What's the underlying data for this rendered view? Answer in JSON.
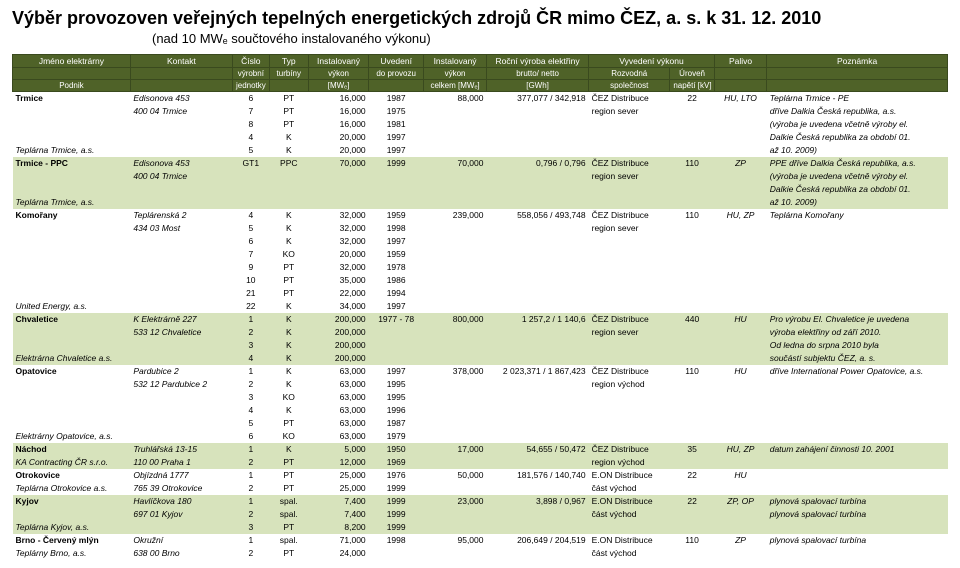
{
  "title": "Výběr provozoven veřejných tepelných energetických zdrojů ČR mimo ČEZ, a. s. k 31. 12. 2010",
  "subtitle": "(nad 10 MWₑ součtového instalovaného výkonu)",
  "headers": {
    "r1": [
      "Jméno elektrárny",
      "Kontakt",
      "Číslo",
      "Typ",
      "Instalovaný",
      "Uvedení",
      "Instalovaný",
      "Roční výroba elektřiny",
      "Vyvedení výkonu",
      "Palivo",
      "Poznámka"
    ],
    "r2": [
      "",
      "",
      "výrobní",
      "turbíny",
      "výkon",
      "do provozu",
      "výkon",
      "brutto/ netto",
      "Rozvodná",
      "Úroveň",
      "",
      ""
    ],
    "r3": [
      "Podnik",
      "",
      "jednotky",
      "",
      "[MWₑ]",
      "",
      "celkem [MWₑ]",
      "[GWh]",
      "společnost",
      "napětí [kV]",
      "",
      ""
    ]
  },
  "rows": [
    {
      "shade": false,
      "plant": "Trmice",
      "company": "",
      "kontakt": "Edisonova 453",
      "cislo": "6",
      "typ": "PT",
      "inst": "16,000",
      "uved": "1987",
      "instc": "88,000",
      "rocni": "377,077 / 342,918",
      "vyv1": "ČEZ Distribuce",
      "vyv2": "22",
      "palivo": "HU, LTO",
      "pozn": "Teplárna Trmice - PE"
    },
    {
      "shade": false,
      "plant": "",
      "company": "",
      "kontakt": "400 04 Trmice",
      "cislo": "7",
      "typ": "PT",
      "inst": "16,000",
      "uved": "1975",
      "instc": "",
      "rocni": "",
      "vyv1": "region sever",
      "vyv2": "",
      "palivo": "",
      "pozn": "dříve Dalkia Česká republika, a.s."
    },
    {
      "shade": false,
      "plant": "",
      "company": "",
      "kontakt": "",
      "cislo": "8",
      "typ": "PT",
      "inst": "16,000",
      "uved": "1981",
      "instc": "",
      "rocni": "",
      "vyv1": "",
      "vyv2": "",
      "palivo": "",
      "pozn": "(výroba je uvedena včetně výroby el."
    },
    {
      "shade": false,
      "plant": "",
      "company": "",
      "kontakt": "",
      "cislo": "4",
      "typ": "K",
      "inst": "20,000",
      "uved": "1997",
      "instc": "",
      "rocni": "",
      "vyv1": "",
      "vyv2": "",
      "palivo": "",
      "pozn": "Dalkie Česká republika za období 01."
    },
    {
      "shade": false,
      "plant": "",
      "company": "Teplárna Trmice, a.s.",
      "kontakt": "",
      "cislo": "5",
      "typ": "K",
      "inst": "20,000",
      "uved": "1997",
      "instc": "",
      "rocni": "",
      "vyv1": "",
      "vyv2": "",
      "palivo": "",
      "pozn": "až 10. 2009)"
    },
    {
      "shade": true,
      "plant": "Trmice - PPC",
      "company": "",
      "kontakt": "Edisonova 453",
      "cislo": "GT1",
      "typ": "PPC",
      "inst": "70,000",
      "uved": "1999",
      "instc": "70,000",
      "rocni": "0,796 / 0,796",
      "vyv1": "ČEZ Distribuce",
      "vyv2": "110",
      "palivo": "ZP",
      "pozn": "PPE dříve Dalkia Česká republika, a.s."
    },
    {
      "shade": true,
      "plant": "",
      "company": "",
      "kontakt": "400 04 Trmice",
      "cislo": "",
      "typ": "",
      "inst": "",
      "uved": "",
      "instc": "",
      "rocni": "",
      "vyv1": "region sever",
      "vyv2": "",
      "palivo": "",
      "pozn": "(výroba je uvedena včetně výroby el."
    },
    {
      "shade": true,
      "plant": "",
      "company": "",
      "kontakt": "",
      "cislo": "",
      "typ": "",
      "inst": "",
      "uved": "",
      "instc": "",
      "rocni": "",
      "vyv1": "",
      "vyv2": "",
      "palivo": "",
      "pozn": "Dalkie Česká republika za období 01."
    },
    {
      "shade": true,
      "plant": "",
      "company": "Teplárna Trmice, a.s.",
      "kontakt": "",
      "cislo": "",
      "typ": "",
      "inst": "",
      "uved": "",
      "instc": "",
      "rocni": "",
      "vyv1": "",
      "vyv2": "",
      "palivo": "",
      "pozn": "až 10. 2009)"
    },
    {
      "shade": false,
      "plant": "Komořany",
      "company": "",
      "kontakt": "Teplárenská 2",
      "cislo": "4",
      "typ": "K",
      "inst": "32,000",
      "uved": "1959",
      "instc": "239,000",
      "rocni": "558,056 / 493,748",
      "vyv1": "ČEZ Distribuce",
      "vyv2": "110",
      "palivo": "HU, ZP",
      "pozn": "Teplárna Komořany"
    },
    {
      "shade": false,
      "plant": "",
      "company": "",
      "kontakt": "434 03 Most",
      "cislo": "5",
      "typ": "K",
      "inst": "32,000",
      "uved": "1998",
      "instc": "",
      "rocni": "",
      "vyv1": "region sever",
      "vyv2": "",
      "palivo": "",
      "pozn": ""
    },
    {
      "shade": false,
      "plant": "",
      "company": "",
      "kontakt": "",
      "cislo": "6",
      "typ": "K",
      "inst": "32,000",
      "uved": "1997",
      "instc": "",
      "rocni": "",
      "vyv1": "",
      "vyv2": "",
      "palivo": "",
      "pozn": ""
    },
    {
      "shade": false,
      "plant": "",
      "company": "",
      "kontakt": "",
      "cislo": "7",
      "typ": "KO",
      "inst": "20,000",
      "uved": "1959",
      "instc": "",
      "rocni": "",
      "vyv1": "",
      "vyv2": "",
      "palivo": "",
      "pozn": ""
    },
    {
      "shade": false,
      "plant": "",
      "company": "",
      "kontakt": "",
      "cislo": "9",
      "typ": "PT",
      "inst": "32,000",
      "uved": "1978",
      "instc": "",
      "rocni": "",
      "vyv1": "",
      "vyv2": "",
      "palivo": "",
      "pozn": ""
    },
    {
      "shade": false,
      "plant": "",
      "company": "",
      "kontakt": "",
      "cislo": "10",
      "typ": "PT",
      "inst": "35,000",
      "uved": "1986",
      "instc": "",
      "rocni": "",
      "vyv1": "",
      "vyv2": "",
      "palivo": "",
      "pozn": ""
    },
    {
      "shade": false,
      "plant": "",
      "company": "",
      "kontakt": "",
      "cislo": "21",
      "typ": "PT",
      "inst": "22,000",
      "uved": "1994",
      "instc": "",
      "rocni": "",
      "vyv1": "",
      "vyv2": "",
      "palivo": "",
      "pozn": ""
    },
    {
      "shade": false,
      "plant": "",
      "company": "United Energy, a.s.",
      "kontakt": "",
      "cislo": "22",
      "typ": "K",
      "inst": "34,000",
      "uved": "1997",
      "instc": "",
      "rocni": "",
      "vyv1": "",
      "vyv2": "",
      "palivo": "",
      "pozn": ""
    },
    {
      "shade": true,
      "plant": "Chvaletice",
      "company": "",
      "kontakt": "K Elektrárně 227",
      "cislo": "1",
      "typ": "K",
      "inst": "200,000",
      "uved": "1977 - 78",
      "instc": "800,000",
      "rocni": "1 257,2 / 1 140,6",
      "vyv1": "ČEZ Distribuce",
      "vyv2": "440",
      "palivo": "HU",
      "pozn": "Pro výrobu El. Chvaletice je uvedena"
    },
    {
      "shade": true,
      "plant": "",
      "company": "",
      "kontakt": "533 12 Chvaletice",
      "cislo": "2",
      "typ": "K",
      "inst": "200,000",
      "uved": "",
      "instc": "",
      "rocni": "",
      "vyv1": "region sever",
      "vyv2": "",
      "palivo": "",
      "pozn": "výroba elektřiny od září 2010."
    },
    {
      "shade": true,
      "plant": "",
      "company": "",
      "kontakt": "",
      "cislo": "3",
      "typ": "K",
      "inst": "200,000",
      "uved": "",
      "instc": "",
      "rocni": "",
      "vyv1": "",
      "vyv2": "",
      "palivo": "",
      "pozn": "Od ledna do srpna 2010 byla"
    },
    {
      "shade": true,
      "plant": "",
      "company": "Elektrárna Chvaletice a.s.",
      "kontakt": "",
      "cislo": "4",
      "typ": "K",
      "inst": "200,000",
      "uved": "",
      "instc": "",
      "rocni": "",
      "vyv1": "",
      "vyv2": "",
      "palivo": "",
      "pozn": "součástí subjektu ČEZ, a. s."
    },
    {
      "shade": false,
      "plant": "Opatovice",
      "company": "",
      "kontakt": "Pardubice 2",
      "cislo": "1",
      "typ": "K",
      "inst": "63,000",
      "uved": "1997",
      "instc": "378,000",
      "rocni": "2 023,371 / 1 867,423",
      "vyv1": "ČEZ Distribuce",
      "vyv2": "110",
      "palivo": "HU",
      "pozn": "dříve International Power Opatovice, a.s."
    },
    {
      "shade": false,
      "plant": "",
      "company": "",
      "kontakt": "532 12 Pardubice 2",
      "cislo": "2",
      "typ": "K",
      "inst": "63,000",
      "uved": "1995",
      "instc": "",
      "rocni": "",
      "vyv1": "region východ",
      "vyv2": "",
      "palivo": "",
      "pozn": ""
    },
    {
      "shade": false,
      "plant": "",
      "company": "",
      "kontakt": "",
      "cislo": "3",
      "typ": "KO",
      "inst": "63,000",
      "uved": "1995",
      "instc": "",
      "rocni": "",
      "vyv1": "",
      "vyv2": "",
      "palivo": "",
      "pozn": ""
    },
    {
      "shade": false,
      "plant": "",
      "company": "",
      "kontakt": "",
      "cislo": "4",
      "typ": "K",
      "inst": "63,000",
      "uved": "1996",
      "instc": "",
      "rocni": "",
      "vyv1": "",
      "vyv2": "",
      "palivo": "",
      "pozn": ""
    },
    {
      "shade": false,
      "plant": "",
      "company": "",
      "kontakt": "",
      "cislo": "5",
      "typ": "PT",
      "inst": "63,000",
      "uved": "1987",
      "instc": "",
      "rocni": "",
      "vyv1": "",
      "vyv2": "",
      "palivo": "",
      "pozn": ""
    },
    {
      "shade": false,
      "plant": "",
      "company": "Elektrárny Opatovice, a.s.",
      "kontakt": "",
      "cislo": "6",
      "typ": "KO",
      "inst": "63,000",
      "uved": "1979",
      "instc": "",
      "rocni": "",
      "vyv1": "",
      "vyv2": "",
      "palivo": "",
      "pozn": ""
    },
    {
      "shade": true,
      "plant": "Náchod",
      "company": "",
      "kontakt": "Truhlářská 13-15",
      "cislo": "1",
      "typ": "K",
      "inst": "5,000",
      "uved": "1950",
      "instc": "17,000",
      "rocni": "54,655 / 50,472",
      "vyv1": "ČEZ Distribuce",
      "vyv2": "35",
      "palivo": "HU, ZP",
      "pozn": "datum zahájení činnosti 10. 2001"
    },
    {
      "shade": true,
      "plant": "",
      "company": "KA Contracting ČR s.r.o.",
      "kontakt": "110 00  Praha 1",
      "cislo": "2",
      "typ": "PT",
      "inst": "12,000",
      "uved": "1969",
      "instc": "",
      "rocni": "",
      "vyv1": "region východ",
      "vyv2": "",
      "palivo": "",
      "pozn": ""
    },
    {
      "shade": false,
      "plant": "Otrokovice",
      "company": "",
      "kontakt": "Objízdná 1777",
      "cislo": "1",
      "typ": "PT",
      "inst": "25,000",
      "uved": "1976",
      "instc": "50,000",
      "rocni": "181,576 / 140,740",
      "vyv1": "E.ON Distribuce",
      "vyv2": "22",
      "palivo": "HU",
      "pozn": ""
    },
    {
      "shade": false,
      "plant": "",
      "company": "Teplárna Otrokovice a.s.",
      "kontakt": "765 39 Otrokovice",
      "cislo": "2",
      "typ": "PT",
      "inst": "25,000",
      "uved": "1999",
      "instc": "",
      "rocni": "",
      "vyv1": "část východ",
      "vyv2": "",
      "palivo": "",
      "pozn": ""
    },
    {
      "shade": true,
      "plant": "Kyjov",
      "company": "",
      "kontakt": "Havlíčkova 180",
      "cislo": "1",
      "typ": "spal.",
      "inst": "7,400",
      "uved": "1999",
      "instc": "23,000",
      "rocni": "3,898 / 0,967",
      "vyv1": "E.ON Distribuce",
      "vyv2": "22",
      "palivo": "ZP, OP",
      "pozn": "plynová spalovací turbína"
    },
    {
      "shade": true,
      "plant": "",
      "company": "",
      "kontakt": "697 01 Kyjov",
      "cislo": "2",
      "typ": "spal.",
      "inst": "7,400",
      "uved": "1999",
      "instc": "",
      "rocni": "",
      "vyv1": "část východ",
      "vyv2": "",
      "palivo": "",
      "pozn": "plynová spalovací turbína"
    },
    {
      "shade": true,
      "plant": "",
      "company": "Teplárna Kyjov, a.s.",
      "kontakt": "",
      "cislo": "3",
      "typ": "PT",
      "inst": "8,200",
      "uved": "1999",
      "instc": "",
      "rocni": "",
      "vyv1": "",
      "vyv2": "",
      "palivo": "",
      "pozn": ""
    },
    {
      "shade": false,
      "plant": "Brno - Červený mlýn",
      "company": "",
      "kontakt": "Okružní",
      "cislo": "1",
      "typ": "spal.",
      "inst": "71,000",
      "uved": "1998",
      "instc": "95,000",
      "rocni": "206,649 / 204,519",
      "vyv1": "E.ON Distribuce",
      "vyv2": "110",
      "palivo": "ZP",
      "pozn": "plynová spalovací turbína"
    },
    {
      "shade": false,
      "plant": "",
      "company": "Teplárny Brno, a.s.",
      "kontakt": "638 00  Brno",
      "cislo": "2",
      "typ": "PT",
      "inst": "24,000",
      "uved": "",
      "instc": "",
      "rocni": "",
      "vyv1": "část východ",
      "vyv2": "",
      "palivo": "",
      "pozn": ""
    }
  ]
}
